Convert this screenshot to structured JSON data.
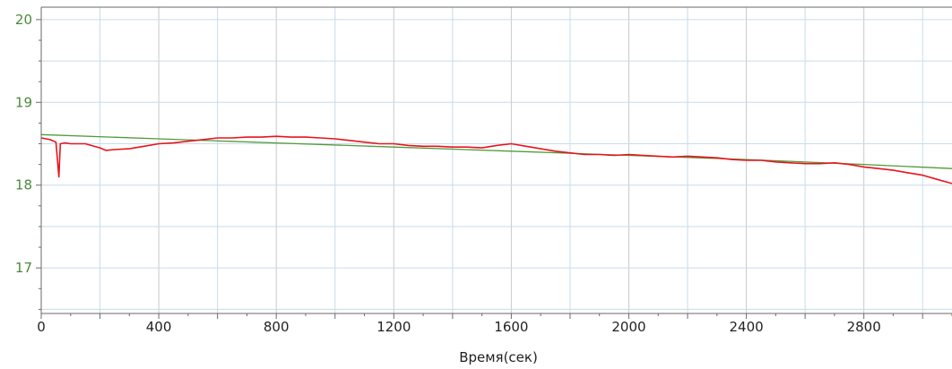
{
  "chart_data": {
    "type": "line",
    "title": "",
    "xlabel": "Время(сек)",
    "ylabel": "",
    "xlim": [
      0,
      3100
    ],
    "ylim": [
      16.45,
      20.15
    ],
    "x_ticks": [
      "0",
      "400",
      "800",
      "1200",
      "1600",
      "2000",
      "2400",
      "2800"
    ],
    "y_ticks": [
      "17",
      "18",
      "19",
      "20"
    ],
    "grid": true,
    "colors": {
      "measured": "#e8141c",
      "fit": "#4f9a3a",
      "grid": "#c6dcec",
      "grid_major": "#c9c9c9",
      "y_tick_color": "#4a8a3a"
    },
    "series": [
      {
        "color": "#4f9a3a",
        "x": [
          0,
          400,
          800,
          1200,
          1600,
          2000,
          2400,
          2800,
          3100
        ],
        "y": [
          18.61,
          18.56,
          18.51,
          18.46,
          18.41,
          18.36,
          18.31,
          18.25,
          18.2
        ]
      },
      {
        "color": "#e8141c",
        "x": [
          0,
          30,
          50,
          60,
          65,
          80,
          100,
          150,
          200,
          220,
          250,
          300,
          350,
          400,
          450,
          500,
          550,
          600,
          650,
          700,
          750,
          800,
          850,
          900,
          950,
          1000,
          1050,
          1100,
          1150,
          1200,
          1250,
          1300,
          1350,
          1400,
          1450,
          1500,
          1550,
          1600,
          1650,
          1700,
          1750,
          1800,
          1850,
          1900,
          1950,
          2000,
          2050,
          2100,
          2150,
          2200,
          2250,
          2300,
          2350,
          2400,
          2450,
          2500,
          2550,
          2600,
          2650,
          2700,
          2750,
          2800,
          2850,
          2900,
          2950,
          3000,
          3050,
          3100
        ],
        "y": [
          18.57,
          18.55,
          18.52,
          18.1,
          18.5,
          18.51,
          18.5,
          18.5,
          18.45,
          18.42,
          18.43,
          18.44,
          18.47,
          18.5,
          18.51,
          18.53,
          18.55,
          18.57,
          18.57,
          18.58,
          18.58,
          18.59,
          18.58,
          18.58,
          18.57,
          18.56,
          18.54,
          18.52,
          18.5,
          18.5,
          18.48,
          18.47,
          18.47,
          18.46,
          18.46,
          18.45,
          18.48,
          18.5,
          18.47,
          18.44,
          18.41,
          18.39,
          18.37,
          18.37,
          18.36,
          18.37,
          18.36,
          18.35,
          18.34,
          18.35,
          18.34,
          18.33,
          18.31,
          18.3,
          18.3,
          18.28,
          18.27,
          18.26,
          18.26,
          18.27,
          18.25,
          18.22,
          18.2,
          18.18,
          18.15,
          18.12,
          18.07,
          18.02
        ]
      }
    ]
  }
}
